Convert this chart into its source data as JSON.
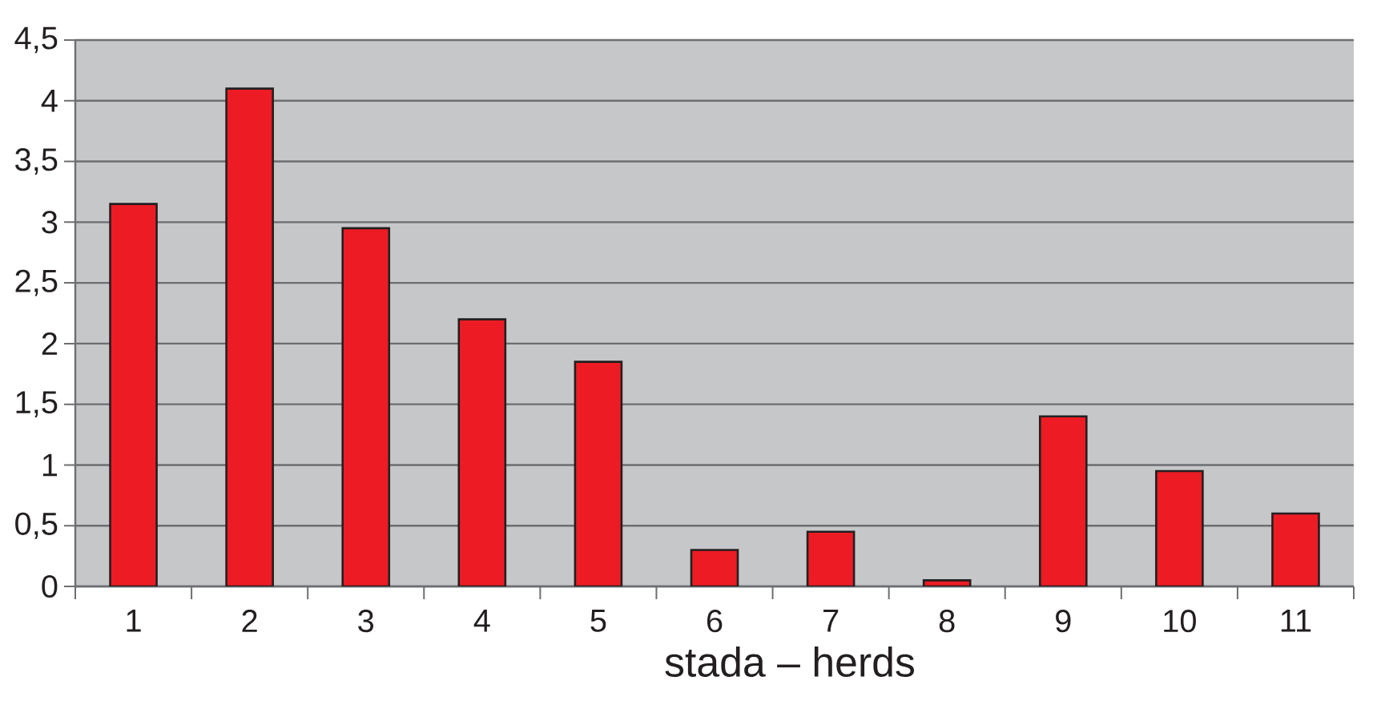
{
  "chart_data": {
    "type": "bar",
    "xlabel": "stada – herds",
    "categories": [
      "1",
      "2",
      "3",
      "4",
      "5",
      "6",
      "7",
      "8",
      "9",
      "10",
      "11"
    ],
    "values": [
      3.15,
      4.1,
      2.95,
      2.2,
      1.85,
      0.3,
      0.45,
      0.05,
      1.4,
      0.95,
      0.6
    ],
    "color": "#ed1c24",
    "ylim": [
      0,
      4.5
    ],
    "yticks": [
      0,
      {
        "value": 0.5,
        "label": "0,5"
      },
      1,
      {
        "value": 1.5,
        "label": "1,5"
      },
      2,
      {
        "value": 2.5,
        "label": "2,5"
      },
      3,
      {
        "value": 3.5,
        "label": "3,5"
      },
      4,
      {
        "value": 4.5,
        "label": "4,5"
      }
    ],
    "grid": "y"
  }
}
